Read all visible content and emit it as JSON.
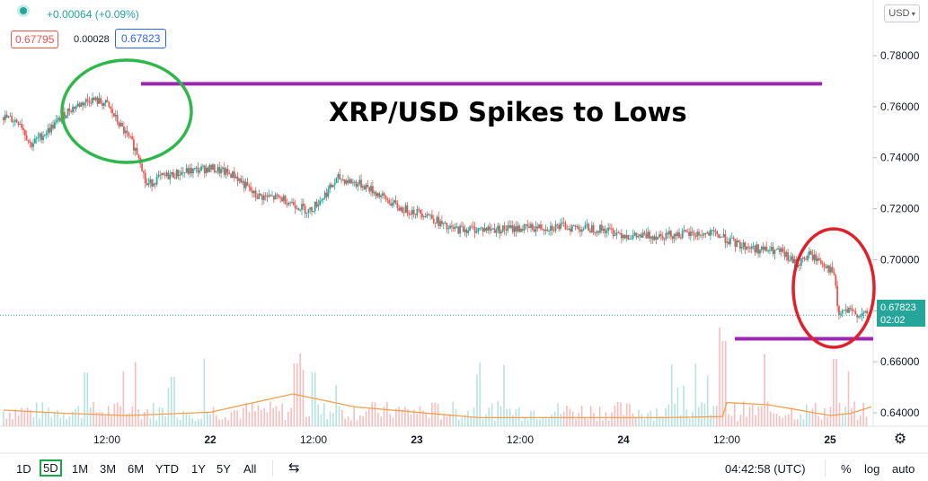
{
  "header": {
    "change": "+0.00064 (+0.09%)",
    "bid": "0.67795",
    "spread": "0.00028",
    "ask": "0.67823",
    "currency_button": "USD"
  },
  "annotation": "XRP/USD Spikes to Lows",
  "price_tag": {
    "price": "0.67823",
    "countdown": "02:02"
  },
  "colors": {
    "up": "#26a69a",
    "down": "#ef5350",
    "level_line": "#9c27b0",
    "green_circle": "#2eb84c",
    "red_circle": "#e0202a",
    "volume_ma": "#f0a050"
  },
  "timeframes": [
    "1D",
    "5D",
    "1M",
    "3M",
    "6M",
    "YTD",
    "1Y",
    "5Y",
    "All"
  ],
  "active_timeframe": "5D",
  "clock": "04:42:58 (UTC)",
  "bottom_right": {
    "percent": "%",
    "log": "log",
    "auto": "auto"
  },
  "icons": [
    "settings-gear-icon",
    "compare-range-icon",
    "live-dot-icon"
  ],
  "chart_data": {
    "type": "candlestick",
    "title": "",
    "y_ticks": [
      "0.78000",
      "0.76000",
      "0.74000",
      "0.72000",
      "0.70000",
      "0.68000",
      "0.66000",
      "0.64000"
    ],
    "ylim": [
      0.634,
      0.786
    ],
    "x_ticks": [
      "12:00",
      "22",
      "12:00",
      "23",
      "12:00",
      "24",
      "12:00",
      "25"
    ],
    "path": [
      {
        "t": 0.0,
        "p": 0.756
      },
      {
        "t": 0.08,
        "p": 0.754
      },
      {
        "t": 0.13,
        "p": 0.745
      },
      {
        "t": 0.22,
        "p": 0.751
      },
      {
        "t": 0.32,
        "p": 0.759
      },
      {
        "t": 0.42,
        "p": 0.763
      },
      {
        "t": 0.5,
        "p": 0.761
      },
      {
        "t": 0.56,
        "p": 0.753
      },
      {
        "t": 0.62,
        "p": 0.746
      },
      {
        "t": 0.66,
        "p": 0.74
      },
      {
        "t": 0.69,
        "p": 0.729
      },
      {
        "t": 0.75,
        "p": 0.732
      },
      {
        "t": 0.85,
        "p": 0.734
      },
      {
        "t": 1.0,
        "p": 0.736
      },
      {
        "t": 1.12,
        "p": 0.733
      },
      {
        "t": 1.22,
        "p": 0.725
      },
      {
        "t": 1.35,
        "p": 0.724
      },
      {
        "t": 1.48,
        "p": 0.719
      },
      {
        "t": 1.55,
        "p": 0.725
      },
      {
        "t": 1.62,
        "p": 0.732
      },
      {
        "t": 1.75,
        "p": 0.729
      },
      {
        "t": 1.92,
        "p": 0.72
      },
      {
        "t": 2.05,
        "p": 0.718
      },
      {
        "t": 2.15,
        "p": 0.712
      },
      {
        "t": 2.4,
        "p": 0.712
      },
      {
        "t": 2.7,
        "p": 0.713
      },
      {
        "t": 2.9,
        "p": 0.712
      },
      {
        "t": 3.05,
        "p": 0.709
      },
      {
        "t": 3.25,
        "p": 0.71
      },
      {
        "t": 3.45,
        "p": 0.71
      },
      {
        "t": 3.55,
        "p": 0.706
      },
      {
        "t": 3.66,
        "p": 0.704
      },
      {
        "t": 3.76,
        "p": 0.703
      },
      {
        "t": 3.84,
        "p": 0.698
      },
      {
        "t": 3.9,
        "p": 0.702
      },
      {
        "t": 3.98,
        "p": 0.698
      },
      {
        "t": 4.02,
        "p": 0.694
      },
      {
        "t": 4.04,
        "p": 0.678
      },
      {
        "t": 4.07,
        "p": 0.68
      },
      {
        "t": 4.12,
        "p": 0.679
      },
      {
        "t": 4.18,
        "p": 0.6782
      }
    ],
    "volume_ma": [
      {
        "t": 0.0,
        "v": 0.15
      },
      {
        "t": 0.3,
        "v": 0.12
      },
      {
        "t": 0.6,
        "v": 0.1
      },
      {
        "t": 1.0,
        "v": 0.13
      },
      {
        "t": 1.4,
        "v": 0.3
      },
      {
        "t": 1.7,
        "v": 0.18
      },
      {
        "t": 2.3,
        "v": 0.08
      },
      {
        "t": 3.2,
        "v": 0.08
      },
      {
        "t": 3.48,
        "v": 0.09
      },
      {
        "t": 3.5,
        "v": 0.22
      },
      {
        "t": 3.7,
        "v": 0.2
      },
      {
        "t": 4.0,
        "v": 0.1
      },
      {
        "t": 4.1,
        "v": 0.12
      },
      {
        "t": 4.2,
        "v": 0.18
      }
    ],
    "resistance_level": 0.769,
    "support_level": 0.669,
    "last_price": 0.67823
  }
}
